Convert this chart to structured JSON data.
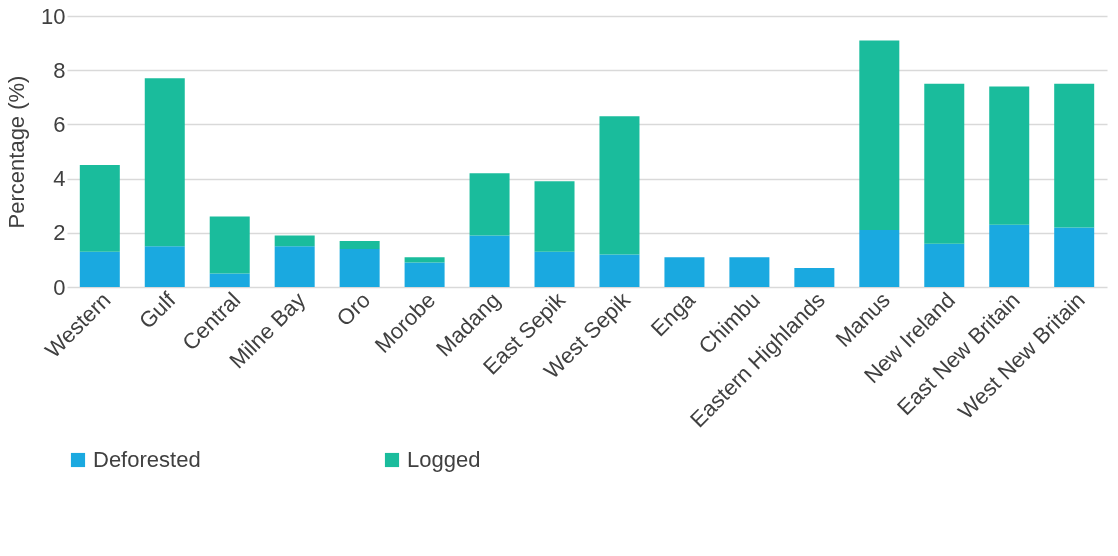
{
  "chart_data": {
    "type": "bar",
    "stacked": true,
    "ylabel": "Percentage (%)",
    "categories": [
      "Western",
      "Gulf",
      "Central",
      "Milne Bay",
      "Oro",
      "Morobe",
      "Madang",
      "East Sepik",
      "West Sepik",
      "Enga",
      "Chimbu",
      "Eastern Highlands",
      "Manus",
      "New Ireland",
      "East New Britain",
      "West New Britain"
    ],
    "series": [
      {
        "name": "Deforested",
        "color": "#1aa9e0",
        "values": [
          1.3,
          1.5,
          0.5,
          1.5,
          1.4,
          0.9,
          1.9,
          1.3,
          1.2,
          1.1,
          1.1,
          0.7,
          2.1,
          1.6,
          2.3,
          2.2
        ]
      },
      {
        "name": "Logged",
        "color": "#1abc9c",
        "values": [
          3.2,
          6.2,
          2.1,
          0.4,
          0.3,
          0.2,
          2.3,
          2.6,
          5.1,
          0,
          0,
          0,
          7.0,
          5.9,
          5.1,
          5.3
        ]
      }
    ],
    "ylim": [
      0,
      10
    ],
    "yticks": [
      0,
      2,
      4,
      6,
      8,
      10
    ],
    "grid": "y",
    "legend": "bottom"
  }
}
